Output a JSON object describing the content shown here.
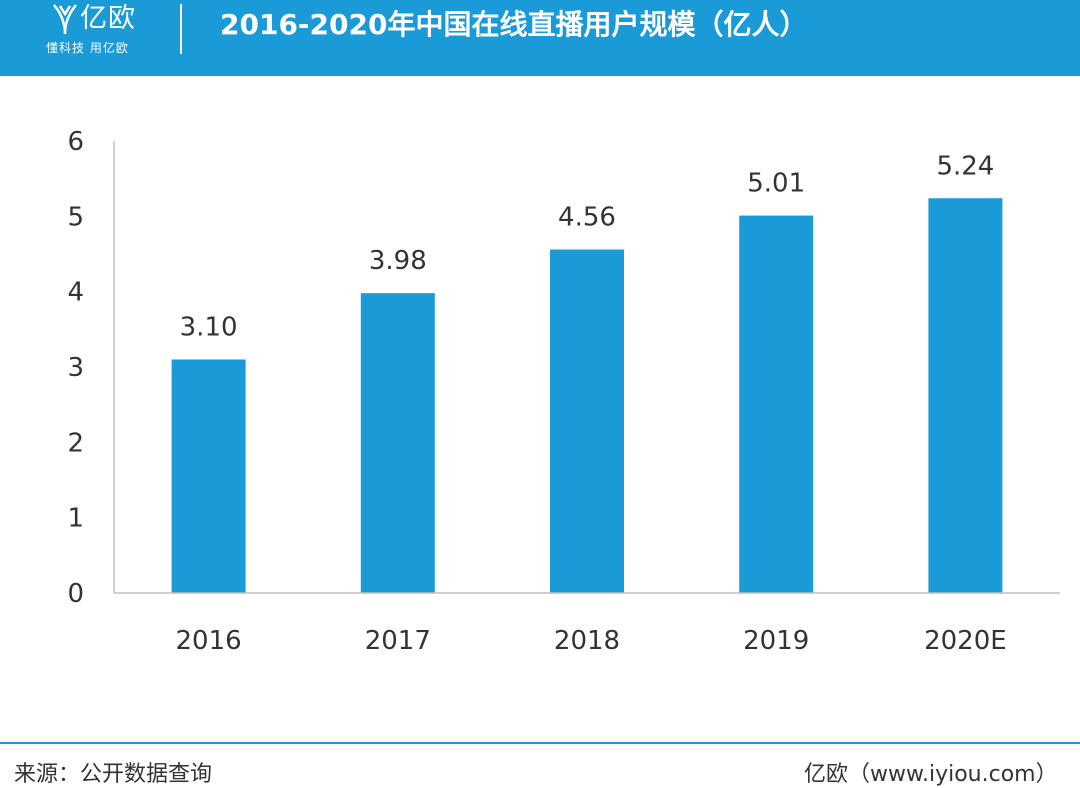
{
  "header": {
    "brand_name": "亿欧",
    "brand_tagline": "懂科技 用亿欧",
    "title": "2016-2020年中国在线直播用户规模（亿人）"
  },
  "chart_data": {
    "type": "bar",
    "title": "2016-2020年中国在线直播用户规模（亿人）",
    "categories": [
      "2016",
      "2017",
      "2018",
      "2019",
      "2020E"
    ],
    "values": [
      3.1,
      3.98,
      4.56,
      5.01,
      5.24
    ],
    "data_labels": [
      "3.10",
      "3.98",
      "4.56",
      "5.01",
      "5.24"
    ],
    "y_ticks": [
      "0",
      "1",
      "2",
      "3",
      "4",
      "5",
      "6"
    ],
    "ylim": [
      0,
      6
    ],
    "bar_color": "#1a9bd7",
    "grid": false,
    "legend": "none"
  },
  "footer": {
    "source": "来源：公开数据查询",
    "site": "亿欧（www.iyiou.com）"
  },
  "colors": {
    "accent": "#1a9bd7",
    "text": "#333333",
    "axis": "#bfbfbf"
  }
}
